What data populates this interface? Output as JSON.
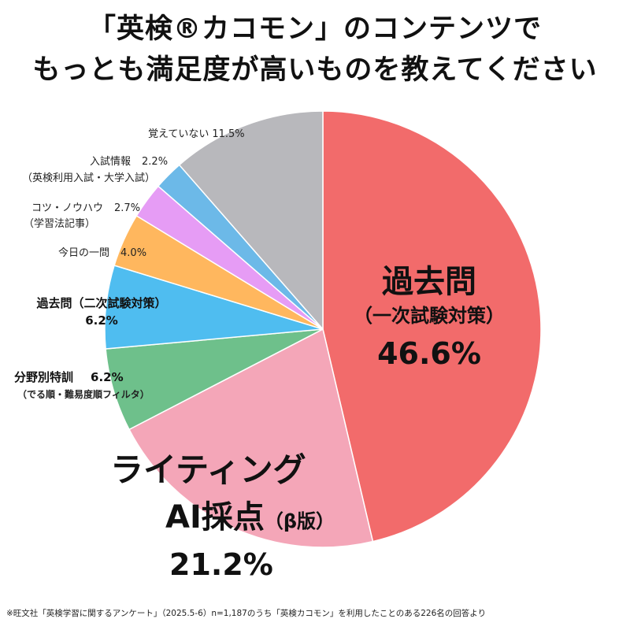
{
  "title": {
    "line1": "「英検®カコモン」のコンテンツで",
    "line2": "もっとも満足度が高いものを教えてください"
  },
  "chart_data": {
    "type": "pie",
    "slices": [
      {
        "label": "過去問",
        "sublabel": "（一次試験対策）",
        "value": 46.6,
        "value_text": "46.6%",
        "color": "#f26b6b"
      },
      {
        "label": "ライティング",
        "label2": "AI採点",
        "label2_suffix": "（β版）",
        "value": 21.2,
        "value_text": "21.2%",
        "color": "#f4a6b8"
      },
      {
        "label": "分野別特訓",
        "sublabel": "（でる順・難易度順フィルタ）",
        "value": 6.2,
        "value_text": "6.2%",
        "color": "#6ec08b"
      },
      {
        "label": "過去問（二次試験対策）",
        "value": 6.2,
        "value_text": "6.2%",
        "color": "#4fbdf0"
      },
      {
        "label": "今日の一問",
        "value": 4.0,
        "value_text": "4.0%",
        "color": "#ffb75e"
      },
      {
        "label": "コツ・ノウハウ",
        "sublabel": "（学習法記事）",
        "value": 2.7,
        "value_text": "2.7%",
        "color": "#e69cf5"
      },
      {
        "label": "入試情報",
        "sublabel": "（英検利用入試・大学入試）",
        "value": 2.2,
        "value_text": "2.2%",
        "color": "#6cb9e8"
      },
      {
        "label": "覚えていない",
        "value": 11.5,
        "value_text": "11.5%",
        "color": "#b8b8bc"
      }
    ]
  },
  "footnote": "※旺文社「英検学習に関するアンケート」（2025.5-6）n=1,187のうち「英検カコモン」を利用したことのある226名の回答より"
}
